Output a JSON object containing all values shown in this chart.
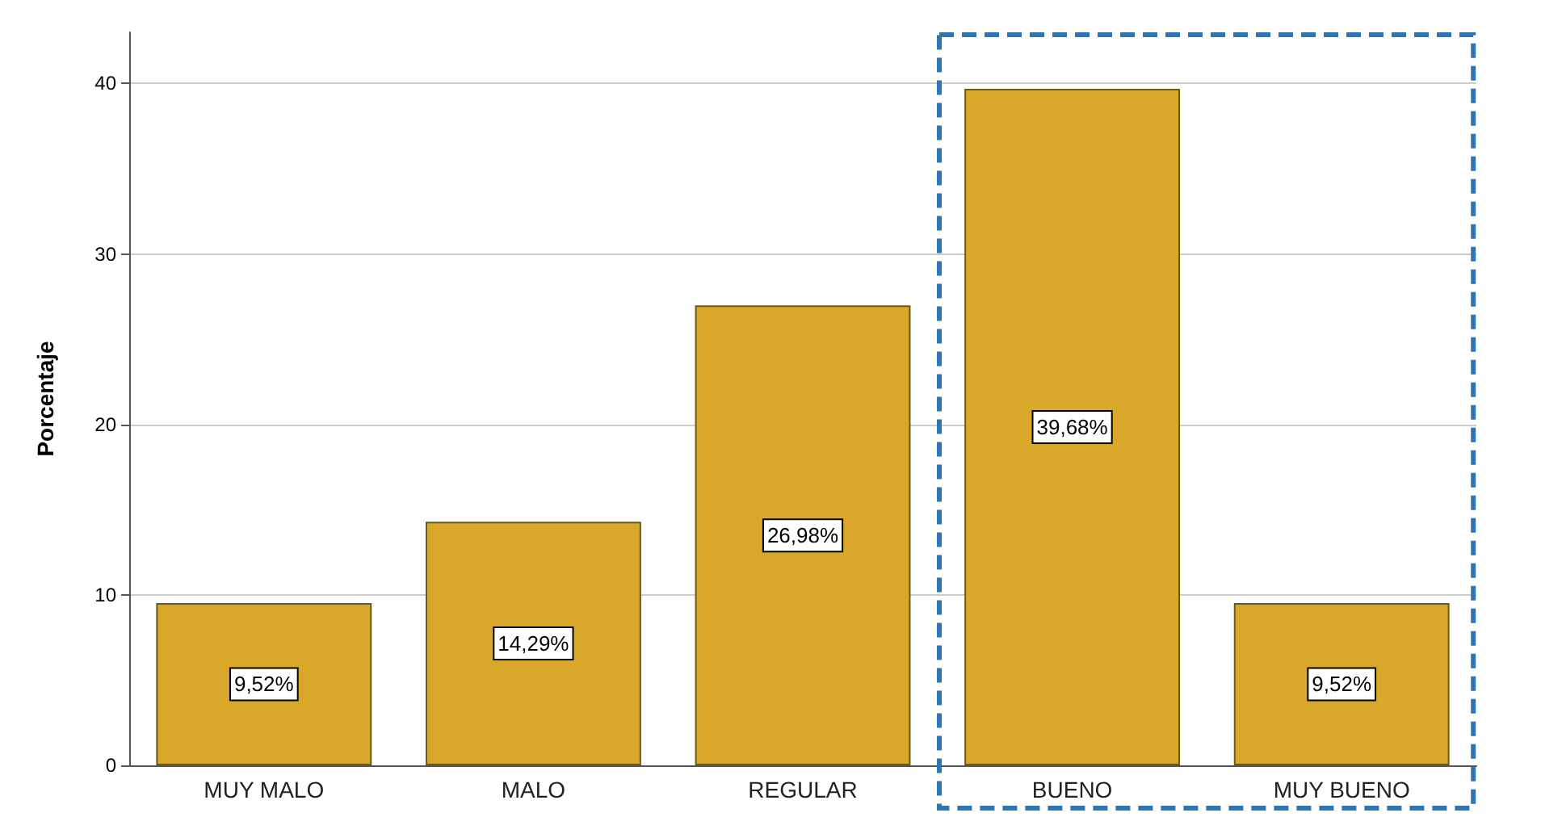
{
  "chart_data": {
    "type": "bar",
    "ylabel": "Porcentaje",
    "categories": [
      "MUY MALO",
      "MALO",
      "REGULAR",
      "BUENO",
      "MUY BUENO"
    ],
    "values": [
      9.52,
      14.29,
      26.98,
      39.68,
      9.52
    ],
    "value_labels": [
      "9,52%",
      "14,29%",
      "26,98%",
      "39,68%",
      "9,52%"
    ],
    "color": "#d9a82a",
    "ylim": [
      0,
      43
    ],
    "yticks": [
      0,
      10,
      20,
      30,
      40
    ],
    "grid": "y"
  }
}
